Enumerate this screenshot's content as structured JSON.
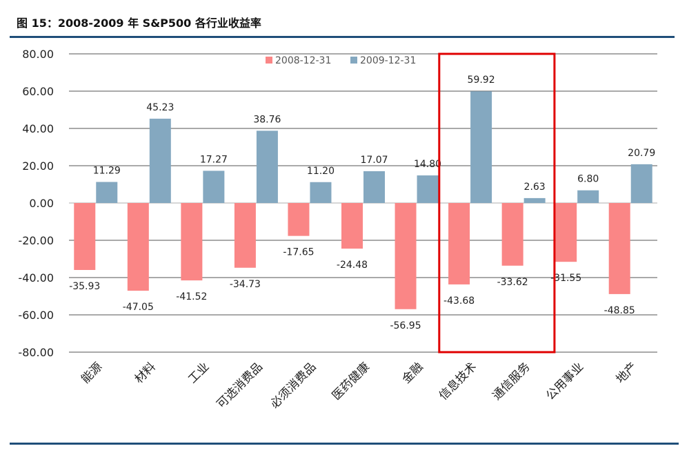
{
  "figure": {
    "title": "图 15：2008-2009 年 S&P500 各行业收益率"
  },
  "colors": {
    "series_2008": "#fa8686",
    "series_2009": "#84a8c0",
    "highlight": "#e00000",
    "rule": "#1f4e79"
  },
  "chart_data": {
    "type": "bar",
    "title": "图 15：2008-2009 年 S&P500 各行业收益率",
    "xlabel": "",
    "ylabel": "",
    "ylim": [
      -80,
      80
    ],
    "yticks": [
      -80,
      -60,
      -40,
      -20,
      0,
      20,
      40,
      60,
      80
    ],
    "ytick_labels": [
      "-80.00",
      "-60.00",
      "-40.00",
      "-20.00",
      "0.00",
      "20.00",
      "40.00",
      "60.00",
      "80.00"
    ],
    "grid": true,
    "legend_position": "top-center",
    "categories": [
      "能源",
      "材料",
      "工业",
      "可选消费品",
      "必须消费品",
      "医药健康",
      "金融",
      "信息技术",
      "通信服务",
      "公用事业",
      "地产"
    ],
    "series": [
      {
        "name": "2008-12-31",
        "values": [
          -35.93,
          -47.05,
          -41.52,
          -34.73,
          -17.65,
          -24.48,
          -56.95,
          -43.68,
          -33.62,
          -31.55,
          -48.85
        ],
        "labels": [
          "-35.93",
          "-47.05",
          "-41.52",
          "-34.73",
          "-17.65",
          "-24.48",
          "-56.95",
          "-43.68",
          "-33.62",
          "-31.55",
          "-48.85"
        ]
      },
      {
        "name": "2009-12-31",
        "values": [
          11.29,
          45.23,
          17.27,
          38.76,
          11.2,
          17.07,
          14.8,
          59.92,
          2.63,
          6.8,
          20.79
        ],
        "labels": [
          "11.29",
          "45.23",
          "17.27",
          "38.76",
          "11.20",
          "17.07",
          "14.80",
          "59.92",
          "2.63",
          "6.80",
          "20.79"
        ]
      }
    ],
    "highlighted_categories": [
      "信息技术",
      "通信服务"
    ]
  }
}
